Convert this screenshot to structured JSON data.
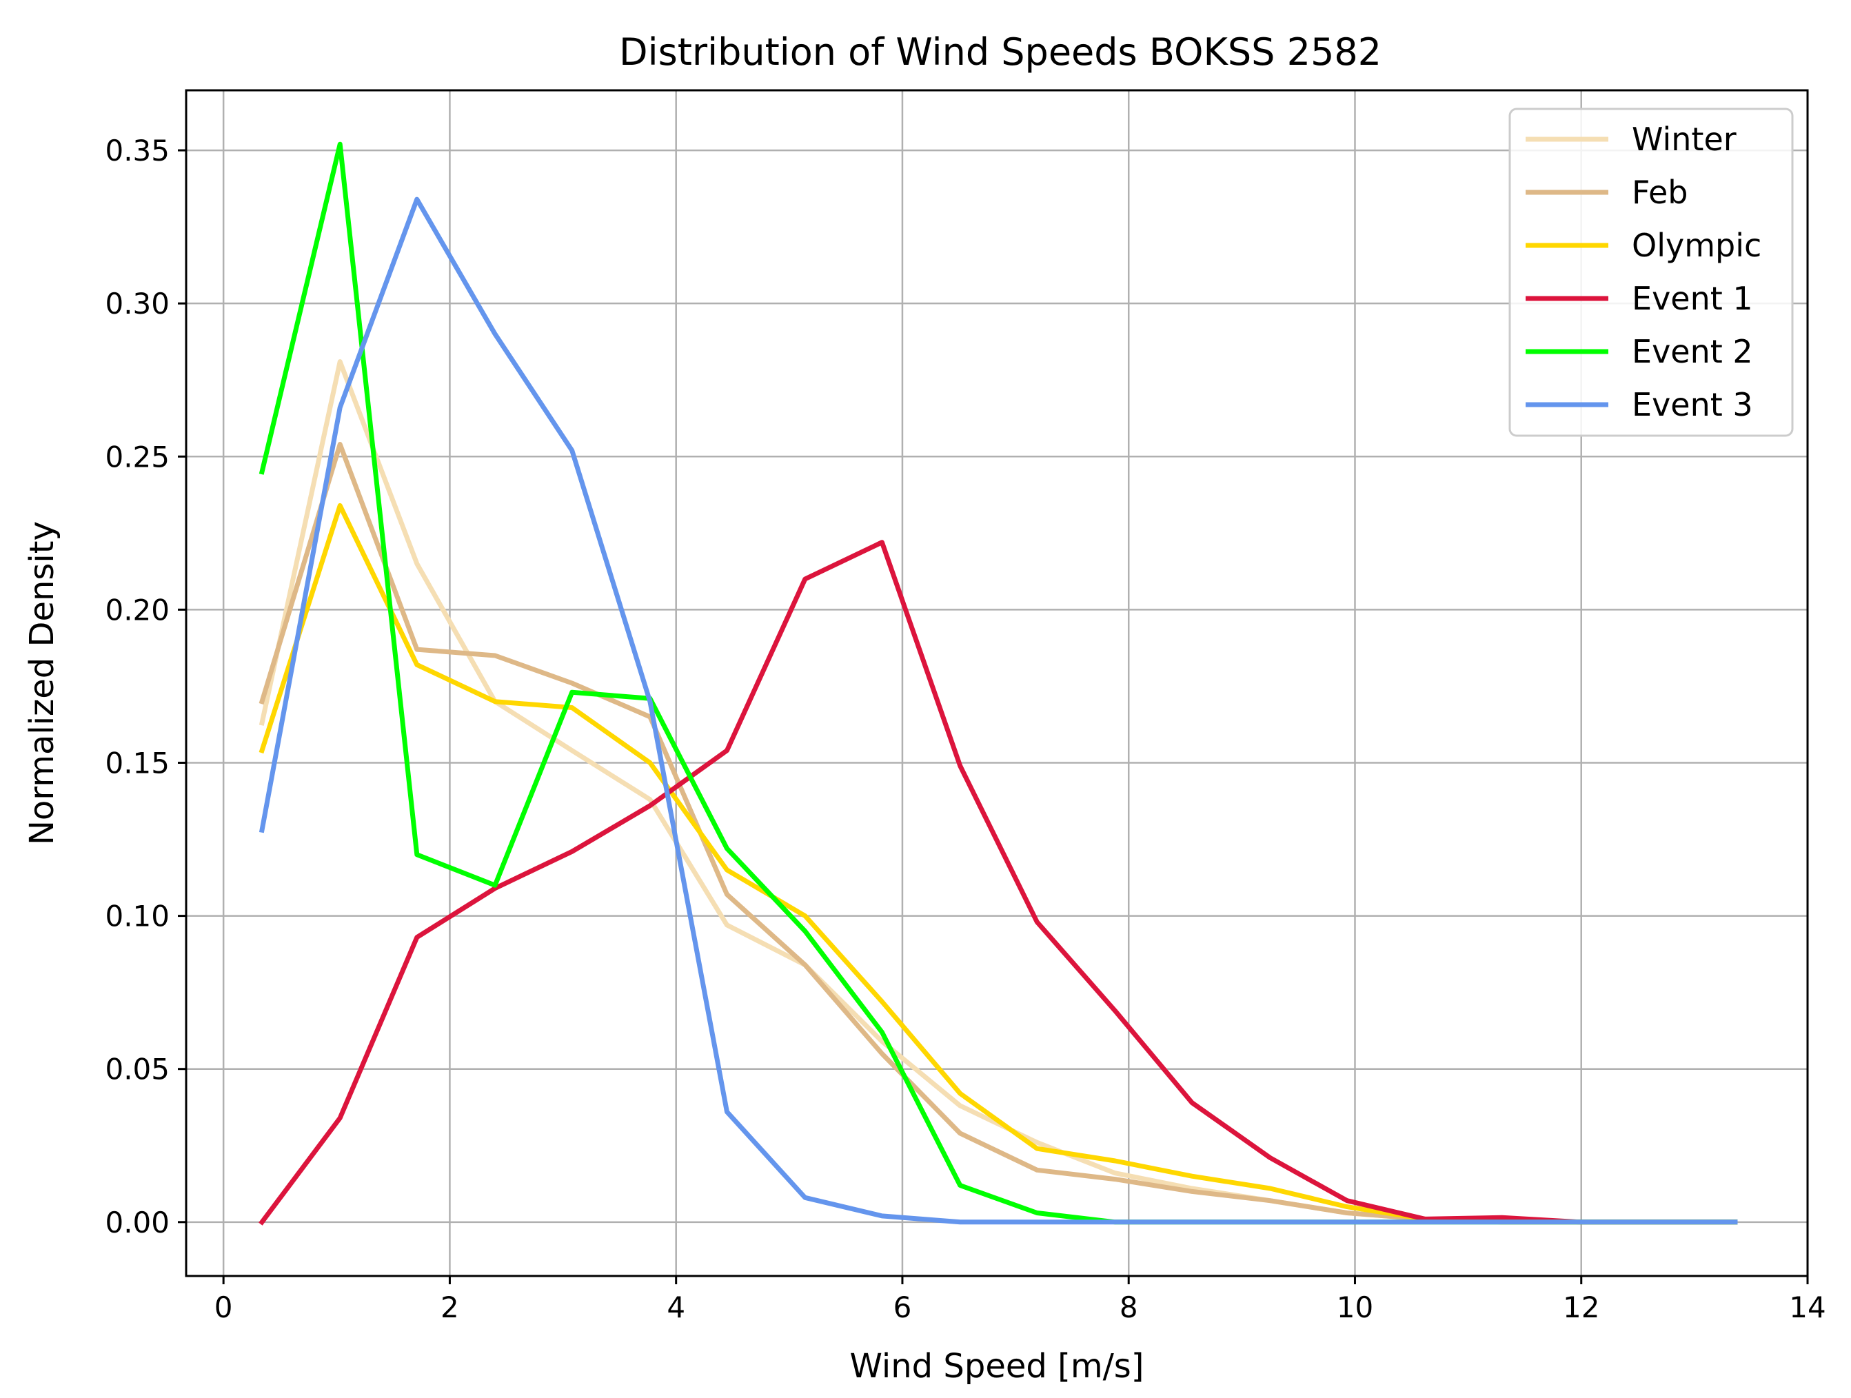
{
  "chart_data": {
    "type": "line",
    "title": "Distribution of Wind Speeds BOKSS 2582",
    "xlabel": "Wind Speed [m/s]",
    "ylabel": "Normalized Density",
    "xlim": [
      -0.33,
      14
    ],
    "ylim": [
      -0.0176,
      0.3696
    ],
    "xticks": [
      0,
      2,
      4,
      6,
      8,
      10,
      12,
      14
    ],
    "xtick_labels": [
      "0",
      "2",
      "4",
      "6",
      "8",
      "10",
      "12",
      "14"
    ],
    "yticks": [
      0.0,
      0.05,
      0.1,
      0.15,
      0.2,
      0.25,
      0.3,
      0.35
    ],
    "ytick_labels": [
      "0.00",
      "0.05",
      "0.10",
      "0.15",
      "0.20",
      "0.25",
      "0.30",
      "0.35"
    ],
    "grid": true,
    "legend_position": "top-right",
    "x": [
      0.34,
      1.03,
      1.71,
      2.4,
      3.08,
      3.77,
      4.45,
      5.14,
      5.82,
      6.51,
      7.19,
      7.88,
      8.56,
      9.25,
      9.93,
      10.62,
      11.3,
      11.99,
      12.67,
      13.36
    ],
    "series": [
      {
        "name": "Winter",
        "color": "#f5deb3",
        "values": [
          0.163,
          0.281,
          0.215,
          0.17,
          0.154,
          0.138,
          0.097,
          0.084,
          0.059,
          0.038,
          0.026,
          0.016,
          0.011,
          0.007,
          0.003,
          0.001,
          0.0,
          0.0,
          0.0,
          0.0
        ]
      },
      {
        "name": "Feb",
        "color": "#deb887",
        "values": [
          0.17,
          0.254,
          0.187,
          0.185,
          0.176,
          0.165,
          0.107,
          0.084,
          0.055,
          0.029,
          0.017,
          0.014,
          0.01,
          0.007,
          0.003,
          0.001,
          0.0,
          0.0,
          0.0,
          0.0
        ]
      },
      {
        "name": "Olympic",
        "color": "#ffd700",
        "values": [
          0.154,
          0.234,
          0.182,
          0.17,
          0.168,
          0.15,
          0.115,
          0.1,
          0.072,
          0.042,
          0.024,
          0.02,
          0.015,
          0.011,
          0.005,
          0.001,
          0.0,
          0.0,
          0.0,
          0.0
        ]
      },
      {
        "name": "Event 1",
        "color": "#dc143c",
        "values": [
          0.0,
          0.034,
          0.093,
          0.109,
          0.121,
          0.136,
          0.154,
          0.21,
          0.222,
          0.149,
          0.098,
          0.069,
          0.039,
          0.021,
          0.007,
          0.001,
          0.0015,
          0.0,
          0.0,
          0.0
        ]
      },
      {
        "name": "Event 2",
        "color": "#00ff00",
        "values": [
          0.245,
          0.352,
          0.12,
          0.11,
          0.173,
          0.171,
          0.122,
          0.095,
          0.062,
          0.012,
          0.003,
          0.0,
          0.0,
          0.0,
          0.0,
          0.0,
          0.0,
          0.0,
          0.0,
          0.0
        ]
      },
      {
        "name": "Event 3",
        "color": "#6495ed",
        "values": [
          0.128,
          0.266,
          0.334,
          0.29,
          0.252,
          0.17,
          0.036,
          0.008,
          0.002,
          0.0,
          0.0,
          0.0,
          0.0,
          0.0,
          0.0,
          0.0,
          0.0,
          0.0,
          0.0,
          0.0
        ]
      }
    ]
  }
}
